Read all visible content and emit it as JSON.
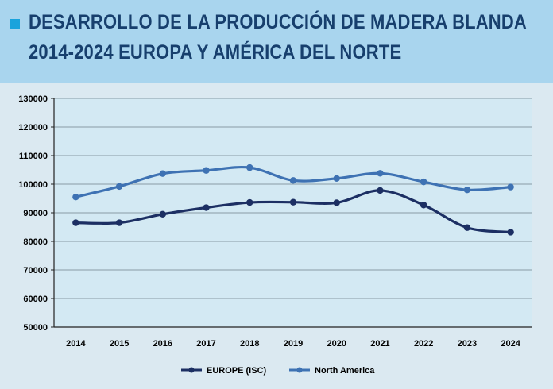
{
  "header": {
    "title_line1": "DESARROLLO DE LA PRODUCCIÓN DE MADERA BLANDA",
    "title_line2": "2014-2024 EUROPA Y AMÉRICA DEL NORTE",
    "accent_color": "#1aa3dc",
    "band_color": "#a9d5ee",
    "title_color": "#173f6d"
  },
  "chart_data": {
    "type": "line",
    "title": "DESARROLLO DE LA PRODUCCIÓN DE MADERA BLANDA 2014-2024 EUROPA Y AMÉRICA DEL NORTE",
    "categories": [
      "2014",
      "2015",
      "2016",
      "2017",
      "2018",
      "2019",
      "2020",
      "2021",
      "2022",
      "2023",
      "2024"
    ],
    "ylim": [
      50000,
      130000
    ],
    "yticks": [
      "50000",
      "60000",
      "70000",
      "80000",
      "90000",
      "100000",
      "110000",
      "120000",
      "130000"
    ],
    "grid": true,
    "legend_position": "bottom",
    "series": [
      {
        "name": "EUROPE (ISC)",
        "color": "#1c2f63",
        "values": [
          86500,
          86500,
          89500,
          91800,
          93600,
          93700,
          93500,
          97800,
          92700,
          84800,
          83200
        ]
      },
      {
        "name": "North America",
        "color": "#3e72b3",
        "values": [
          95500,
          99200,
          103700,
          104800,
          105800,
          101300,
          102000,
          103800,
          100800,
          98000,
          99000
        ]
      }
    ]
  }
}
